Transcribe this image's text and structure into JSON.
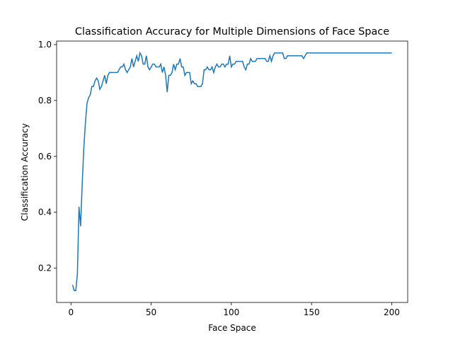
{
  "chart_data": {
    "type": "line",
    "title": "Classification Accuracy for Multiple Dimensions of Face Space",
    "x_label": "Face Space",
    "y_label": "Classification Accuracy",
    "x": [
      1,
      2,
      3,
      4,
      5,
      6,
      7,
      8,
      9,
      10,
      11,
      12,
      13,
      14,
      15,
      16,
      17,
      18,
      19,
      20,
      21,
      22,
      23,
      24,
      29,
      30,
      31,
      32,
      33,
      34,
      35,
      36,
      37,
      38,
      39,
      40,
      41,
      42,
      43,
      44,
      45,
      46,
      47,
      48,
      49,
      50,
      51,
      52,
      53,
      55,
      56,
      57,
      58,
      59,
      60,
      61,
      62,
      63,
      64,
      65,
      66,
      67,
      68,
      69,
      70,
      71,
      72,
      74,
      75,
      76,
      77,
      78,
      79,
      81,
      82,
      83,
      84,
      85,
      86,
      87,
      88,
      89,
      90,
      91,
      92,
      93,
      94,
      95,
      96,
      97,
      98,
      99,
      100,
      101,
      102,
      103,
      107,
      108,
      109,
      110,
      111,
      112,
      113,
      115,
      116,
      121,
      122,
      123,
      124,
      125,
      126,
      127,
      132,
      133,
      134,
      135,
      144,
      145,
      146,
      147,
      200
    ],
    "series": [
      {
        "name": "accuracy",
        "color": "#1f77b4",
        "values": [
          0.14,
          0.12,
          0.12,
          0.18,
          0.42,
          0.35,
          0.5,
          0.63,
          0.72,
          0.79,
          0.81,
          0.82,
          0.85,
          0.85,
          0.87,
          0.88,
          0.87,
          0.84,
          0.85,
          0.87,
          0.89,
          0.86,
          0.89,
          0.9,
          0.9,
          0.91,
          0.92,
          0.92,
          0.93,
          0.91,
          0.9,
          0.91,
          0.92,
          0.95,
          0.92,
          0.94,
          0.96,
          0.94,
          0.97,
          0.96,
          0.93,
          0.93,
          0.96,
          0.92,
          0.91,
          0.92,
          0.93,
          0.93,
          0.92,
          0.92,
          0.93,
          0.9,
          0.92,
          0.89,
          0.83,
          0.89,
          0.89,
          0.9,
          0.93,
          0.91,
          0.93,
          0.93,
          0.95,
          0.92,
          0.92,
          0.89,
          0.9,
          0.9,
          0.86,
          0.87,
          0.86,
          0.86,
          0.85,
          0.85,
          0.86,
          0.91,
          0.91,
          0.92,
          0.91,
          0.91,
          0.92,
          0.9,
          0.92,
          0.93,
          0.92,
          0.92,
          0.93,
          0.93,
          0.92,
          0.93,
          0.93,
          0.96,
          0.92,
          0.93,
          0.93,
          0.94,
          0.94,
          0.92,
          0.91,
          0.93,
          0.93,
          0.95,
          0.94,
          0.94,
          0.95,
          0.95,
          0.94,
          0.94,
          0.96,
          0.94,
          0.96,
          0.97,
          0.97,
          0.95,
          0.95,
          0.96,
          0.96,
          0.95,
          0.96,
          0.97,
          0.97
        ]
      }
    ],
    "xlim": [
      -8.95,
      209.95
    ],
    "ylim": [
      0.0775,
      1.0125
    ],
    "xticks": [
      0,
      50,
      100,
      150,
      200
    ],
    "yticks": [
      0.2,
      0.4,
      0.6,
      0.8,
      {
        "value": 1.0,
        "label": "1.0"
      }
    ]
  }
}
